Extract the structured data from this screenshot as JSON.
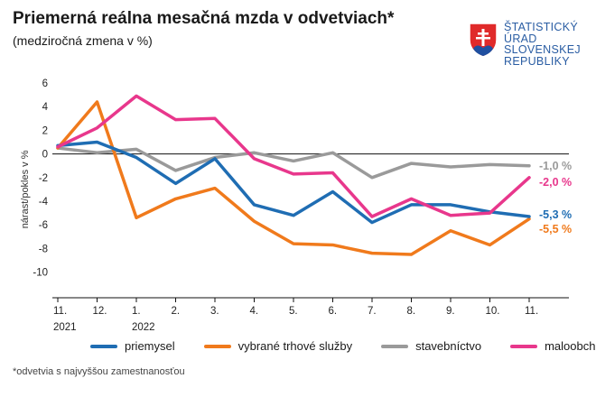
{
  "header": {
    "title": "Priemerná reálna mesačná mzda v odvetviach*",
    "subtitle": "(medziročná zmena v %)"
  },
  "logo": {
    "lines": [
      "ŠTATISTICKÝ",
      "ÚRAD",
      "SLOVENSKEJ",
      "REPUBLIKY"
    ],
    "color": "#2a5da3"
  },
  "footnote": "*odvetvia s najvyššou zamestnanosťou",
  "chart_data": {
    "type": "line",
    "ylabel": "nárast/pokles v %",
    "ylim": [
      -12,
      6
    ],
    "yticks": [
      6,
      4,
      2,
      0,
      -2,
      -4,
      -6,
      -8,
      -10
    ],
    "categories": [
      "11.",
      "12.",
      "1.",
      "2.",
      "3.",
      "4.",
      "5.",
      "6.",
      "7.",
      "8.",
      "9.",
      "10.",
      "11."
    ],
    "year_labels": [
      {
        "index": 0,
        "label": "2021"
      },
      {
        "index": 2,
        "label": "2022"
      }
    ],
    "grid": false,
    "legend_position": "bottom",
    "series": [
      {
        "name": "priemysel",
        "color": "#1f6db3",
        "values": [
          0.7,
          1.0,
          -0.3,
          -2.5,
          -0.4,
          -4.3,
          -5.2,
          -3.2,
          -5.8,
          -4.3,
          -4.3,
          -4.9,
          -5.3
        ],
        "end_label": "-5,3 %"
      },
      {
        "name": "vybrané trhové služby",
        "color": "#f07a1c",
        "values": [
          0.5,
          4.4,
          -5.4,
          -3.8,
          -2.9,
          -5.7,
          -7.6,
          -7.7,
          -8.4,
          -8.5,
          -6.5,
          -7.7,
          -5.5
        ],
        "end_label": "-5,5 %"
      },
      {
        "name": "stavebníctvo",
        "color": "#9a9a9a",
        "values": [
          0.5,
          0.1,
          0.4,
          -1.4,
          -0.3,
          0.1,
          -0.6,
          0.1,
          -2.0,
          -0.8,
          -1.1,
          -0.9,
          -1.0
        ],
        "end_label": "-1,0 %"
      },
      {
        "name": "maloobchod",
        "color": "#e8378c",
        "values": [
          0.6,
          2.2,
          4.9,
          2.9,
          3.0,
          -0.4,
          -1.7,
          -1.6,
          -5.3,
          -3.8,
          -5.2,
          -5.0,
          -2.0
        ],
        "end_label": "-2,0 %"
      }
    ]
  }
}
